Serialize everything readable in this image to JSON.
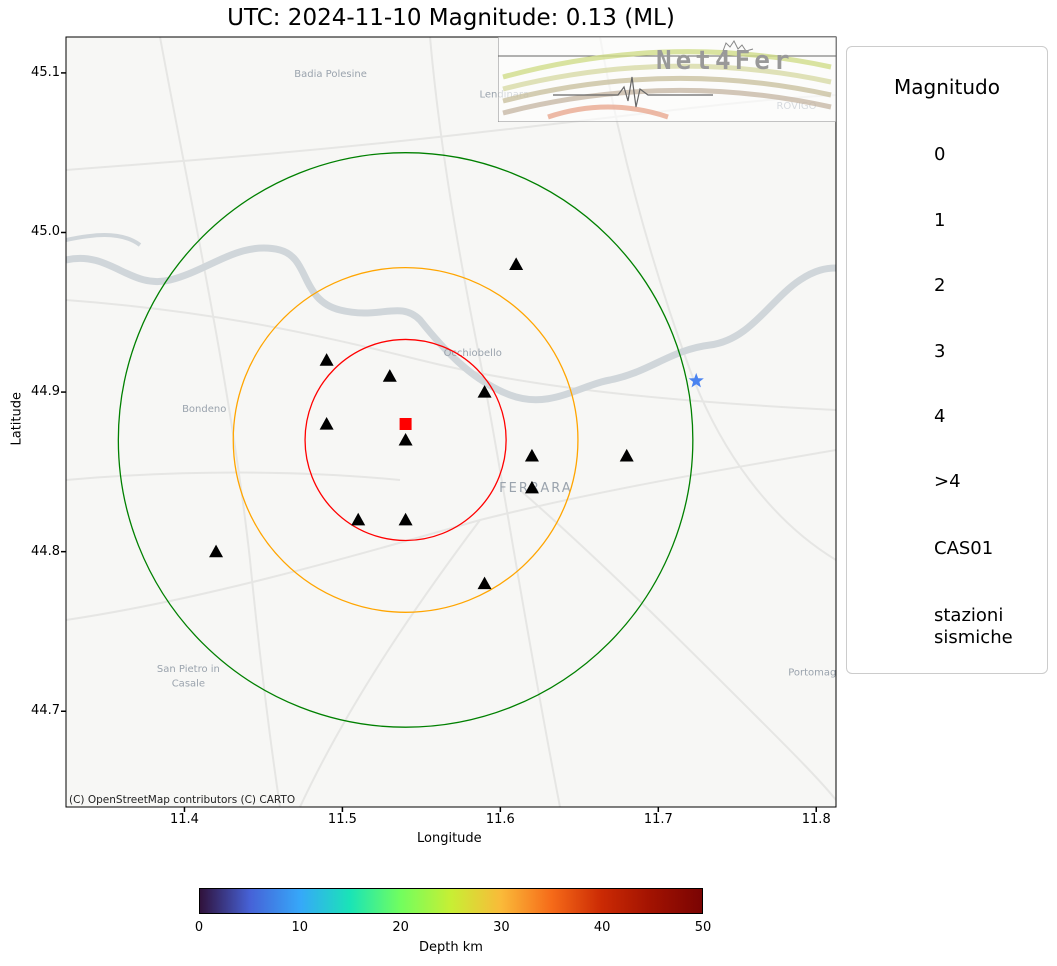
{
  "title": "UTC: 2024-11-10 Magnitude: 0.13 (ML)",
  "axes": {
    "xlabel": "Longitude",
    "ylabel": "Latitude",
    "xlim": [
      11.325,
      11.8125
    ],
    "ylim": [
      44.64,
      45.1225
    ],
    "xticks": [
      "11.4",
      "11.5",
      "11.6",
      "11.7",
      "11.8"
    ],
    "xtick_values": [
      11.4,
      11.5,
      11.6,
      11.7,
      11.8
    ],
    "yticks": [
      "44.7",
      "44.8",
      "44.9",
      "45.0",
      "45.1"
    ],
    "ytick_values": [
      44.7,
      44.8,
      44.9,
      45.0,
      45.1
    ]
  },
  "map": {
    "credits": "(C) OpenStreetMap contributors (C) CARTO",
    "places": [
      {
        "name": "Badia Polesine",
        "lon": 11.4925,
        "lat": 45.0975
      },
      {
        "name": "Lendinara",
        "lon": 11.6025,
        "lat": 45.0845
      },
      {
        "name": "ROVIGO",
        "lon": 11.7875,
        "lat": 45.0775
      },
      {
        "name": "Occhiobello",
        "lon": 11.5825,
        "lat": 44.9225
      },
      {
        "name": "Bondeno",
        "lon": 11.4125,
        "lat": 44.8875
      },
      {
        "name": "FERRARA",
        "lon": 11.6225,
        "lat": 44.8375
      },
      {
        "name": "San Pietro in",
        "lon": 11.4025,
        "lat": 44.7245
      },
      {
        "name": "Casale",
        "lon": 11.4025,
        "lat": 44.7155
      },
      {
        "name": "Portomag",
        "lon": 11.7975,
        "lat": 44.7225
      }
    ],
    "colors": {
      "background": "#f7f7f5",
      "water": "#d3d8dc",
      "roads": "#e4e4e4"
    }
  },
  "chart_data": {
    "type": "scatter",
    "center": {
      "name": "CAS01",
      "lon": 11.54,
      "lat": 44.88,
      "color": "#ff0000"
    },
    "event": {
      "lon": 11.724,
      "lat": 44.907,
      "magnitude": 0.13,
      "depth_km": 9,
      "color": "#4a83f0"
    },
    "rings": [
      {
        "radius_deg_lat": 0.063,
        "color": "#ff0000"
      },
      {
        "radius_deg_lat": 0.108,
        "color": "#ffa500"
      },
      {
        "radius_deg_lat": 0.18,
        "color": "#008000"
      }
    ],
    "ring_center": {
      "lon": 11.54,
      "lat": 44.87
    },
    "stations": [
      {
        "lon": 11.61,
        "lat": 44.98
      },
      {
        "lon": 11.49,
        "lat": 44.92
      },
      {
        "lon": 11.53,
        "lat": 44.91
      },
      {
        "lon": 11.59,
        "lat": 44.9
      },
      {
        "lon": 11.49,
        "lat": 44.88
      },
      {
        "lon": 11.54,
        "lat": 44.87
      },
      {
        "lon": 11.62,
        "lat": 44.86
      },
      {
        "lon": 11.68,
        "lat": 44.86
      },
      {
        "lon": 11.62,
        "lat": 44.84
      },
      {
        "lon": 11.51,
        "lat": 44.82
      },
      {
        "lon": 11.54,
        "lat": 44.82
      },
      {
        "lon": 11.42,
        "lat": 44.8
      },
      {
        "lon": 11.59,
        "lat": 44.78
      }
    ]
  },
  "legend": {
    "title": "Magnitudo",
    "items": [
      {
        "label": "0",
        "marker": "star",
        "size": 0
      },
      {
        "label": "1",
        "marker": "star",
        "size": 1
      },
      {
        "label": "2",
        "marker": "star",
        "size": 2
      },
      {
        "label": "3",
        "marker": "star",
        "size": 3
      },
      {
        "label": "4",
        "marker": "star",
        "size": 4
      },
      {
        "label": ">4",
        "marker": "star-outline",
        "size": 5
      },
      {
        "label": "CAS01",
        "marker": "square",
        "size": 1
      },
      {
        "label": "stazioni\nsismiche",
        "marker": "triangle",
        "size": 1
      }
    ]
  },
  "colorbar": {
    "label": "Depth km",
    "ticks": [
      "0",
      "10",
      "20",
      "30",
      "40",
      "50"
    ],
    "range": [
      0,
      50
    ]
  },
  "logo": {
    "text": "Net4Fer"
  }
}
